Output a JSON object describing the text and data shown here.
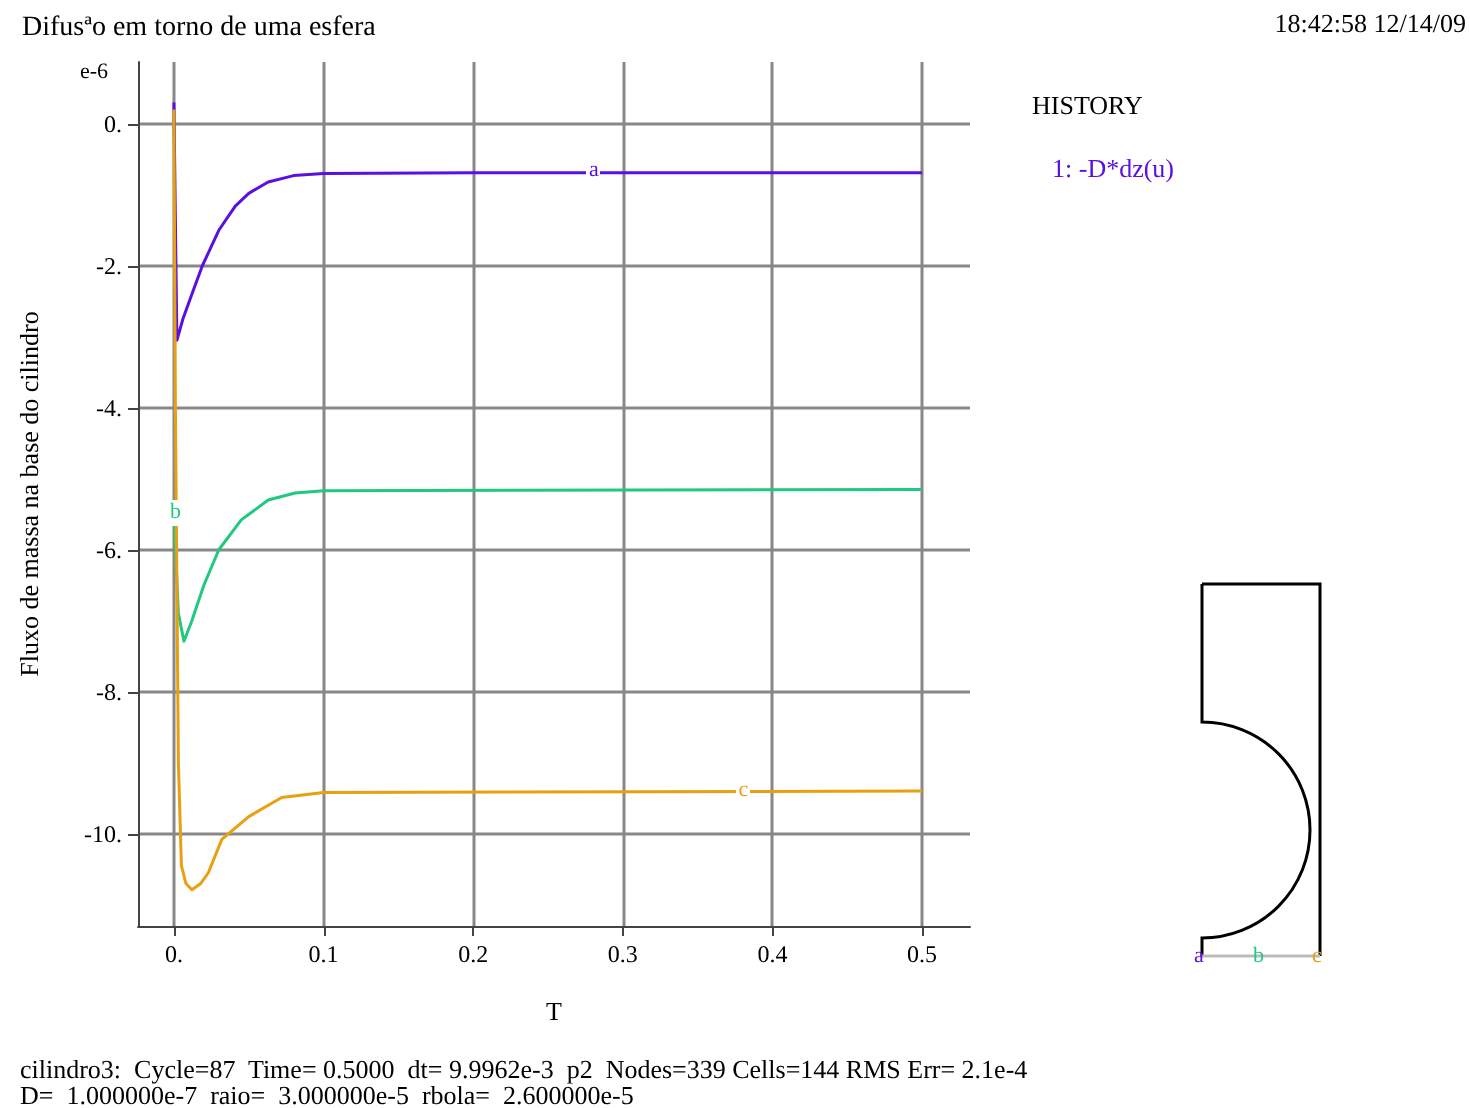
{
  "chart_data": {
    "type": "line",
    "title": "Difusªo em torno de uma esfera",
    "xlabel": "T",
    "ylabel": "Fluxo de massa na base do cilindro",
    "legend_title": "HISTORY",
    "annotations": [
      {
        "text": "a",
        "x": 0.28,
        "y": -0.69
      },
      {
        "text": "b",
        "x": 0,
        "y": -5.5
      },
      {
        "text": "c",
        "x": 0.38,
        "y": -9.4
      },
      "e-6",
      "18:42:58 12/14/09",
      "cilindro3:  Cycle=87  Time= 0.5000  dt= 9.9962e-3  p2  Nodes=339 Cells=144 RMS Err= 2.1e-4",
      "D=  1.000000e-7  raio=  3.000000e-5  rbola=  2.600000e-5",
      "a",
      "b",
      "c"
    ],
    "series": [
      {
        "name": "1: -D*dz(u)",
        "color": "#5a10e0",
        "x": [
          0,
          0.002,
          0.006,
          0.012,
          0.019,
          0.03,
          0.041,
          0.05,
          0.063,
          0.08,
          0.1,
          0.2,
          0.5
        ],
        "values": [
          0.3,
          -3.05,
          -2.75,
          -2.4,
          -2.0,
          -1.5,
          -1.16,
          -0.98,
          -0.82,
          -0.73,
          -0.7,
          -0.69,
          -0.69
        ]
      },
      {
        "color": "#20c880",
        "x": [
          0,
          0.003,
          0.0067,
          0.012,
          0.02,
          0.03,
          0.045,
          0.063,
          0.081,
          0.1,
          0.5
        ],
        "values": [
          -5.5,
          -6.9,
          -7.29,
          -7.0,
          -6.5,
          -6.0,
          -5.58,
          -5.3,
          -5.2,
          -5.17,
          -5.15
        ]
      },
      {
        "color": "#e8a010",
        "x": [
          0,
          0.001,
          0.003,
          0.005,
          0.008,
          0.012,
          0.018,
          0.023,
          0.032,
          0.05,
          0.072,
          0.1,
          0.5
        ],
        "values": [
          0.2,
          -4,
          -9,
          -10.45,
          -10.7,
          -10.79,
          -10.7,
          -10.55,
          -10.08,
          -9.76,
          -9.49,
          -9.42,
          -9.4
        ]
      }
    ],
    "xlim": [
      -0.024,
      0.532
    ],
    "xticks": [
      {
        "value": 0,
        "label": "0."
      },
      0.1,
      0.2,
      0.3,
      0.4,
      0.5
    ],
    "ylim": [
      -11.3,
      0.87
    ],
    "yticks": [
      {
        "value": -10,
        "label": "-10."
      },
      {
        "value": -8,
        "label": "-8."
      },
      {
        "value": -6,
        "label": "-6."
      },
      {
        "value": -4,
        "label": "-4."
      },
      {
        "value": -2,
        "label": "-2."
      },
      {
        "value": 0,
        "label": "0."
      }
    ],
    "grid": true,
    "legend": "right",
    "marker": "none",
    "line_style": "solid"
  }
}
